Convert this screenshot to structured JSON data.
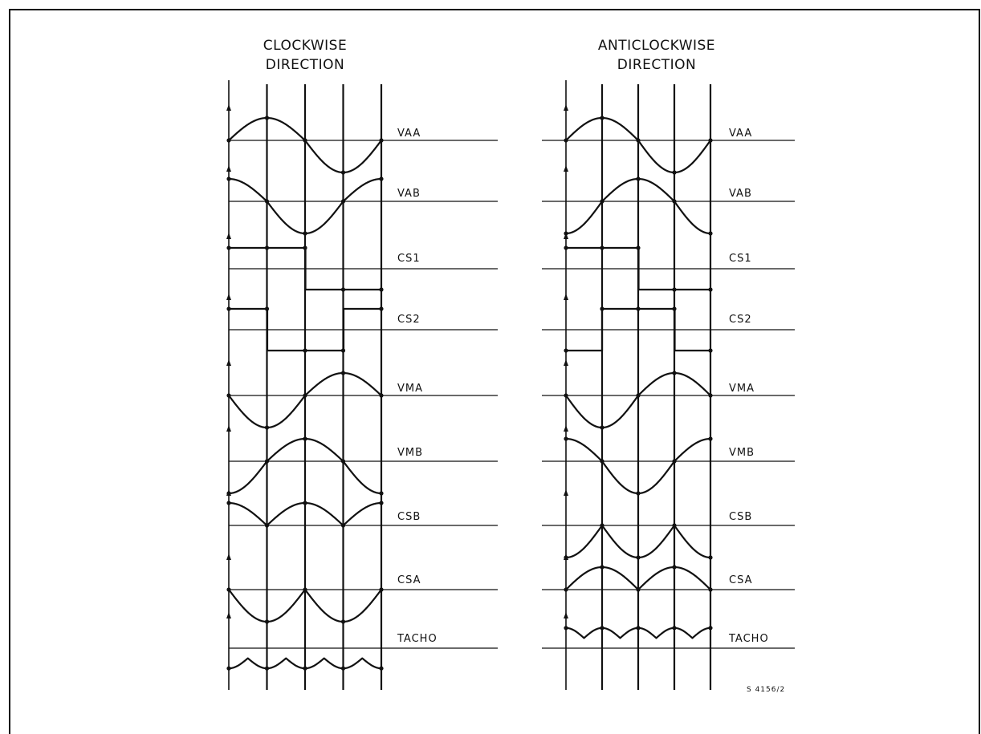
{
  "panels": [
    {
      "id": "clockwise",
      "title_line1": "CLOCKWISE",
      "title_line2": "DIRECTION",
      "signals": [
        {
          "label": "VAA",
          "type": "sine",
          "phase": 0
        },
        {
          "label": "VAB",
          "type": "sine",
          "phase": 90
        },
        {
          "label": "CS1",
          "type": "square",
          "phase": 0
        },
        {
          "label": "CS2",
          "type": "square",
          "phase": 90
        },
        {
          "label": "VMA",
          "type": "sine",
          "phase": 180
        },
        {
          "label": "VMB",
          "type": "sine",
          "phase": 270
        },
        {
          "label": "CSB",
          "type": "rectified_sine",
          "phase": 90
        },
        {
          "label": "CSA",
          "type": "inverted_rectified_sine",
          "phase": 0
        },
        {
          "label": "TACHO",
          "type": "tacho",
          "phase": 0
        }
      ]
    },
    {
      "id": "anticlockwise",
      "title_line1": "ANTICLOCKWISE",
      "title_line2": "DIRECTION",
      "signals": [
        {
          "label": "VAA",
          "type": "sine",
          "phase": 0
        },
        {
          "label": "VAB",
          "type": "sine",
          "phase": -90
        },
        {
          "label": "CS1",
          "type": "square",
          "phase": 0
        },
        {
          "label": "CS2",
          "type": "square",
          "phase": -90
        },
        {
          "label": "VMA",
          "type": "sine",
          "phase": 180
        },
        {
          "label": "VMB",
          "type": "sine",
          "phase": 90
        },
        {
          "label": "CSB",
          "type": "inverted_rectified_sine",
          "phase": 90
        },
        {
          "label": "CSA",
          "type": "rectified_sine",
          "phase": 0
        },
        {
          "label": "TACHO",
          "type": "tacho_up",
          "phase": 0
        }
      ]
    }
  ],
  "figure_ref": "S  4156/2",
  "colors": {
    "ink": "#111111",
    "paper": "#ffffff"
  }
}
